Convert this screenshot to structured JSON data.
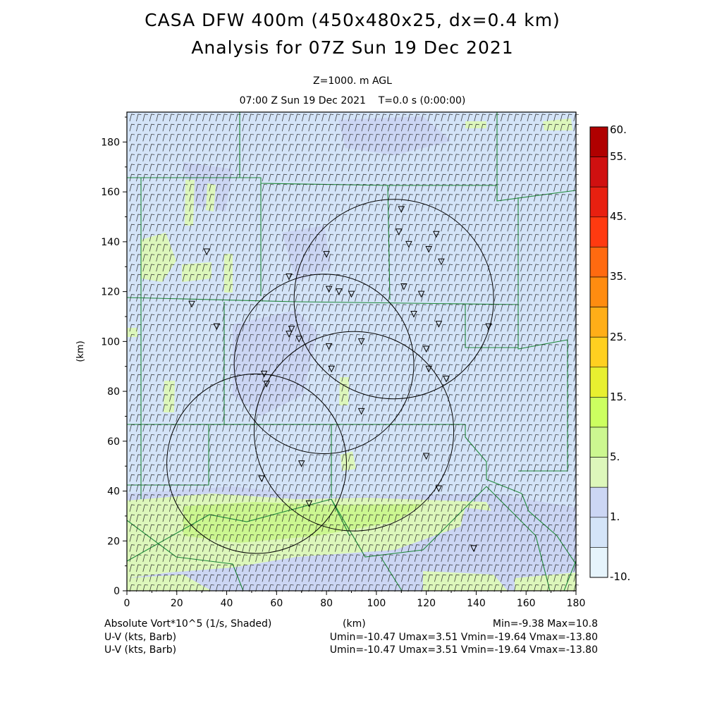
{
  "header": {
    "title_line1": "CASA DFW 400m (450x480x25, dx=0.4 km)",
    "title_line2": "Analysis for 07Z Sun 19 Dec 2021",
    "level": "Z=1000. m AGL",
    "time": "07:00 Z Sun 19 Dec 2021    T=0.0 s (0:00:00)"
  },
  "footer": {
    "field_label": "Absolute Vort*10^5 (1/s, Shaded)",
    "axis_unit": "(km)",
    "minmax": "Min=-9.38 Max=10.8",
    "wind_label_1": "U-V (kts, Barb)",
    "wind_stats_1": "Umin=-10.47 Umax=3.51 Vmin=-19.64 Vmax=-13.80",
    "wind_label_2": "U-V (kts, Barb)",
    "wind_stats_2": "Umin=-10.47 Umax=3.51 Vmin=-19.64 Vmax=-13.80"
  },
  "chart_data": {
    "type": "heatmap",
    "title": "CASA DFW 400m (450x480x25, dx=0.4 km)",
    "xlabel": "(km)",
    "ylabel": "(km)",
    "xlim": [
      0,
      180
    ],
    "ylim": [
      0,
      192
    ],
    "x_ticks": [
      0,
      20,
      40,
      60,
      80,
      100,
      120,
      140,
      160,
      180
    ],
    "y_ticks": [
      0,
      20,
      40,
      60,
      80,
      100,
      120,
      140,
      160,
      180
    ],
    "field": "Absolute Vort*10^5 (1/s)",
    "field_min": -9.38,
    "field_max": 10.8,
    "colorbar": {
      "labels": [
        "60.",
        "55.",
        "45.",
        "35.",
        "25.",
        "15.",
        "5.",
        "1.",
        "-10."
      ],
      "colors": [
        "#b00000",
        "#d01010",
        "#e82010",
        "#ff3a10",
        "#ff6a10",
        "#ff8c10",
        "#ffae18",
        "#ffd020",
        "#e8f030",
        "#ccff60",
        "#ccf790",
        "#ddf7bb",
        "#ccd6f4",
        "#d4e4f8",
        "#e6f4fc"
      ]
    },
    "wind_barbs": {
      "units": "kts",
      "u_range": [
        -10.47,
        3.51
      ],
      "v_range": [
        -19.64,
        -13.8
      ],
      "typical_speed": 15
    },
    "radar_sites": [
      {
        "x": 107,
        "y": 117,
        "radius": 40
      },
      {
        "x": 79,
        "y": 91,
        "radius": 36
      },
      {
        "x": 91,
        "y": 64,
        "radius": 40
      },
      {
        "x": 52,
        "y": 51,
        "radius": 36
      }
    ],
    "stations": [
      [
        110,
        153
      ],
      [
        109,
        144
      ],
      [
        113,
        139
      ],
      [
        121,
        137
      ],
      [
        124,
        143
      ],
      [
        126,
        132
      ],
      [
        80,
        135
      ],
      [
        32,
        136
      ],
      [
        65,
        126
      ],
      [
        81,
        121
      ],
      [
        85,
        120
      ],
      [
        90,
        119
      ],
      [
        111,
        122
      ],
      [
        118,
        119
      ],
      [
        26,
        115
      ],
      [
        115,
        111
      ],
      [
        125,
        107
      ],
      [
        145,
        106
      ],
      [
        36,
        106
      ],
      [
        66,
        105
      ],
      [
        65,
        103
      ],
      [
        69,
        101
      ],
      [
        81,
        98
      ],
      [
        94,
        100
      ],
      [
        120,
        97
      ],
      [
        55,
        87
      ],
      [
        56,
        83
      ],
      [
        82,
        89
      ],
      [
        121,
        89
      ],
      [
        128,
        85
      ],
      [
        94,
        72
      ],
      [
        70,
        51
      ],
      [
        120,
        54
      ],
      [
        54,
        45
      ],
      [
        73,
        35
      ],
      [
        125,
        41
      ],
      [
        139,
        17
      ]
    ]
  }
}
